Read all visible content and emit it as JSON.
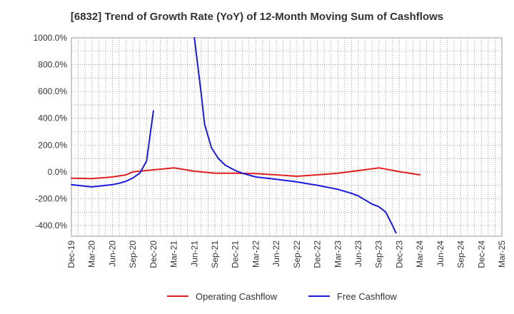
{
  "chart_data": {
    "type": "line",
    "title": "[6832]  Trend of Growth Rate (YoY) of 12-Month Moving Sum of Cashflows",
    "xlabel": "",
    "ylabel": "",
    "ylim": [
      -480,
      1000
    ],
    "y_ticks": [
      {
        "value": 1000,
        "label": "1000.0%"
      },
      {
        "value": 800,
        "label": "800.0%"
      },
      {
        "value": 600,
        "label": "600.0%"
      },
      {
        "value": 400,
        "label": "400.0%"
      },
      {
        "value": 200,
        "label": "200.0%"
      },
      {
        "value": 0,
        "label": "0.0%"
      },
      {
        "value": -200,
        "label": "-200.0%"
      },
      {
        "value": -400,
        "label": "-400.0%"
      }
    ],
    "x_ticks": [
      "Dec-19",
      "Mar-20",
      "Jun-20",
      "Sep-20",
      "Dec-20",
      "Mar-21",
      "Jun-21",
      "Sep-21",
      "Dec-21",
      "Mar-22",
      "Jun-22",
      "Sep-22",
      "Dec-22",
      "Mar-23",
      "Jun-23",
      "Sep-23",
      "Dec-23",
      "Mar-24",
      "Jun-24",
      "Sep-24",
      "Dec-24",
      "Mar-25"
    ],
    "grid": true,
    "legend_position": "bottom",
    "series": [
      {
        "name": "Operating Cashflow",
        "color": "#e02020",
        "points": [
          {
            "x": 0,
            "y": -47
          },
          {
            "x": 3,
            "y": -50
          },
          {
            "x": 6,
            "y": -38
          },
          {
            "x": 8,
            "y": -22
          },
          {
            "x": 9,
            "y": 0
          },
          {
            "x": 12,
            "y": 15
          },
          {
            "x": 15,
            "y": 30
          },
          {
            "x": 18,
            "y": 5
          },
          {
            "x": 21,
            "y": -10
          },
          {
            "x": 24,
            "y": -10
          },
          {
            "x": 27,
            "y": -13
          },
          {
            "x": 30,
            "y": -22
          },
          {
            "x": 33,
            "y": -33
          },
          {
            "x": 36,
            "y": -22
          },
          {
            "x": 39,
            "y": -10
          },
          {
            "x": 42,
            "y": 10
          },
          {
            "x": 45,
            "y": 30
          },
          {
            "x": 48,
            "y": 2
          },
          {
            "x": 51,
            "y": -22
          }
        ]
      },
      {
        "name": "Free Cashflow",
        "color": "#1a1adc",
        "points": [
          {
            "x": 0,
            "y": -95
          },
          {
            "x": 3,
            "y": -112
          },
          {
            "x": 6,
            "y": -95
          },
          {
            "x": 7,
            "y": -85
          },
          {
            "x": 8,
            "y": -70
          },
          {
            "x": 9,
            "y": -45
          },
          {
            "x": 10,
            "y": -10
          },
          {
            "x": 11,
            "y": 80
          },
          {
            "x": 12,
            "y": 455
          },
          {
            "x": null,
            "y": null
          },
          {
            "x": 18,
            "y": 1000
          },
          {
            "x": 19,
            "y": 580
          },
          {
            "x": 19.5,
            "y": 355
          },
          {
            "x": 20.5,
            "y": 180
          },
          {
            "x": 21.5,
            "y": 100
          },
          {
            "x": 22.5,
            "y": 50
          },
          {
            "x": 24,
            "y": 10
          },
          {
            "x": 25,
            "y": -10
          },
          {
            "x": 27,
            "y": -38
          },
          {
            "x": 30,
            "y": -55
          },
          {
            "x": 33,
            "y": -75
          },
          {
            "x": 36,
            "y": -100
          },
          {
            "x": 39,
            "y": -130
          },
          {
            "x": 41,
            "y": -160
          },
          {
            "x": 42,
            "y": -180
          },
          {
            "x": 43,
            "y": -210
          },
          {
            "x": 44,
            "y": -240
          },
          {
            "x": 45,
            "y": -260
          },
          {
            "x": 46,
            "y": -300
          },
          {
            "x": 47,
            "y": -400
          },
          {
            "x": 47.5,
            "y": -455
          }
        ]
      }
    ]
  }
}
